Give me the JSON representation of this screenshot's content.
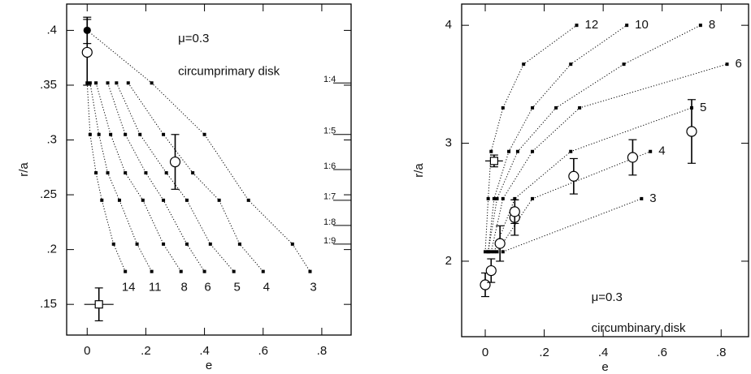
{
  "chart_data": [
    {
      "type": "line",
      "xlabel": "e",
      "ylabel": "r/a",
      "color": "#000000",
      "xlim": [
        -0.07,
        0.9
      ],
      "ylim": [
        0.122,
        0.424
      ],
      "xticks": [
        0,
        {
          "value": 0.2,
          "label": ".2"
        },
        {
          "value": 0.4,
          "label": ".4"
        },
        {
          "value": 0.6,
          "label": ".6"
        },
        {
          "value": 0.8,
          "label": ".8"
        }
      ],
      "yticks": [
        {
          "value": 0.15,
          "label": ".15"
        },
        {
          "value": 0.2,
          "label": ".2"
        },
        {
          "value": 0.25,
          "label": ".25"
        },
        {
          "value": 0.3,
          "label": ".3"
        },
        {
          "value": 0.35,
          "label": ".35"
        },
        {
          "value": 0.4,
          "label": ".4"
        }
      ],
      "label_position": "below",
      "series": [
        {
          "name": "3",
          "x": [
            0,
            0.22,
            0.4,
            0.55,
            0.7,
            0.76
          ],
          "y": [
            0.4,
            0.352,
            0.305,
            0.245,
            0.205,
            0.18
          ]
        },
        {
          "name": "4",
          "x": [
            0.14,
            0.26,
            0.36,
            0.45,
            0.52,
            0.6
          ],
          "y": [
            0.352,
            0.305,
            0.27,
            0.245,
            0.205,
            0.18
          ]
        },
        {
          "name": "5",
          "x": [
            0.1,
            0.18,
            0.27,
            0.34,
            0.42,
            0.5
          ],
          "y": [
            0.352,
            0.305,
            0.27,
            0.245,
            0.205,
            0.18
          ]
        },
        {
          "name": "6",
          "x": [
            0.07,
            0.13,
            0.2,
            0.26,
            0.34,
            0.4
          ],
          "y": [
            0.352,
            0.305,
            0.27,
            0.245,
            0.205,
            0.18
          ]
        },
        {
          "name": "8",
          "x": [
            0.03,
            0.08,
            0.13,
            0.19,
            0.26,
            0.32
          ],
          "y": [
            0.352,
            0.305,
            0.27,
            0.245,
            0.205,
            0.18
          ]
        },
        {
          "name": "11",
          "x": [
            0.01,
            0.04,
            0.07,
            0.11,
            0.17,
            0.22
          ],
          "y": [
            0.352,
            0.305,
            0.27,
            0.245,
            0.205,
            0.18
          ]
        },
        {
          "name": "14",
          "x": [
            0,
            0.01,
            0.03,
            0.05,
            0.09,
            0.13
          ],
          "y": [
            0.352,
            0.305,
            0.27,
            0.245,
            0.205,
            0.18
          ]
        }
      ],
      "errorbars": [
        {
          "marker": "filled",
          "x": 0,
          "y": 0.4,
          "yerr": 0.012
        },
        {
          "marker": "circle",
          "x": 0,
          "y": 0.38,
          "yerr": 0.03
        },
        {
          "marker": "circle",
          "x": 0.3,
          "y": 0.28,
          "yerr": 0.025
        },
        {
          "marker": "square",
          "x": 0.04,
          "y": 0.15,
          "yerr": 0.015,
          "xerr": 0.05
        }
      ],
      "annotations": [
        {
          "text": "μ=0.3",
          "x": 0.31,
          "y": 0.392
        },
        {
          "text": "circumprimary disk",
          "x": 0.31,
          "y": 0.362
        }
      ],
      "resonances": [
        {
          "text": "1:4",
          "y": 0.352
        },
        {
          "text": "1:5",
          "y": 0.305
        },
        {
          "text": "1:6",
          "y": 0.273
        },
        {
          "text": "1:7",
          "y": 0.245
        },
        {
          "text": "1:8",
          "y": 0.222
        },
        {
          "text": "1:9",
          "y": 0.205
        }
      ]
    },
    {
      "type": "line",
      "xlabel": "e",
      "ylabel": "r/a",
      "color": "#000000",
      "xlim": [
        -0.08,
        0.893
      ],
      "ylim": [
        1.36,
        4.18
      ],
      "xticks": [
        0,
        {
          "value": 0.2,
          "label": ".2"
        },
        {
          "value": 0.4,
          "label": ".4"
        },
        {
          "value": 0.6,
          "label": ".6"
        },
        {
          "value": 0.8,
          "label": ".8"
        }
      ],
      "yticks": [
        2,
        3,
        4
      ],
      "label_position": "right",
      "series": [
        {
          "name": "12",
          "x": [
            0,
            0.01,
            0.02,
            0.06,
            0.13,
            0.31
          ],
          "y": [
            2.08,
            2.53,
            2.93,
            3.3,
            3.67,
            4.0
          ]
        },
        {
          "name": "10",
          "x": [
            0.01,
            0.03,
            0.08,
            0.16,
            0.29,
            0.48
          ],
          "y": [
            2.08,
            2.53,
            2.93,
            3.3,
            3.67,
            4.0
          ]
        },
        {
          "name": "8",
          "x": [
            0.01,
            0.04,
            0.11,
            0.24,
            0.47,
            0.73
          ],
          "y": [
            2.08,
            2.53,
            2.93,
            3.3,
            3.67,
            4.0
          ]
        },
        {
          "name": "6",
          "x": [
            0.02,
            0.06,
            0.16,
            0.32,
            0.82
          ],
          "y": [
            2.08,
            2.53,
            2.93,
            3.3,
            3.67
          ]
        },
        {
          "name": "5",
          "x": [
            0.03,
            0.1,
            0.29,
            0.7
          ],
          "y": [
            2.08,
            2.53,
            2.93,
            3.3
          ]
        },
        {
          "name": "4",
          "x": [
            0.04,
            0.16,
            0.56
          ],
          "y": [
            2.08,
            2.53,
            2.93
          ]
        },
        {
          "name": "3",
          "x": [
            0.06,
            0.53
          ],
          "y": [
            2.08,
            2.53
          ]
        }
      ],
      "errorbars": [
        {
          "marker": "circle",
          "x": 0,
          "y": 1.8,
          "yerr": 0.1
        },
        {
          "marker": "circle",
          "x": 0.02,
          "y": 1.92,
          "yerr": 0.1
        },
        {
          "marker": "circle",
          "x": 0.05,
          "y": 2.15,
          "yerr": 0.15
        },
        {
          "marker": "circle",
          "x": 0.1,
          "y": 2.37,
          "yerr": 0.15
        },
        {
          "marker": "circle",
          "x": 0.1,
          "y": 2.42,
          "yerr": 0.1
        },
        {
          "marker": "circle",
          "x": 0.3,
          "y": 2.72,
          "yerr": 0.15
        },
        {
          "marker": "circle",
          "x": 0.5,
          "y": 2.88,
          "yerr": 0.15
        },
        {
          "marker": "circle",
          "x": 0.7,
          "y": 3.1,
          "yerr": 0.27
        },
        {
          "marker": "square",
          "x": 0.03,
          "y": 2.85,
          "yerr": 0.05,
          "xerr": 0.03
        }
      ],
      "annotations": [
        {
          "text": "μ=0.3",
          "x": 0.36,
          "y": 1.69
        },
        {
          "text": "circumbinary disk",
          "x": 0.36,
          "y": 1.43
        }
      ]
    }
  ]
}
